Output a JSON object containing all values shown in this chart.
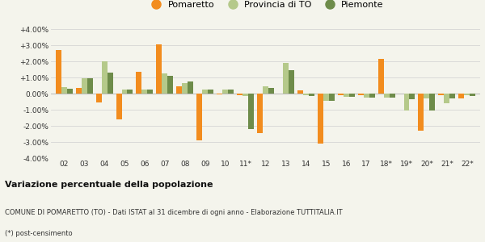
{
  "categories": [
    "02",
    "03",
    "04",
    "05",
    "06",
    "07",
    "08",
    "09",
    "10",
    "11*",
    "12",
    "13",
    "14",
    "15",
    "16",
    "17",
    "18*",
    "19*",
    "20*",
    "21*",
    "22*"
  ],
  "pomaretto": [
    2.7,
    0.35,
    -0.55,
    -1.6,
    1.35,
    3.05,
    0.45,
    -2.9,
    -0.05,
    -0.1,
    -2.45,
    0.0,
    0.2,
    -3.1,
    -0.1,
    -0.1,
    2.15,
    0.0,
    -2.3,
    -0.1,
    -0.3
  ],
  "provincia_to": [
    0.4,
    0.95,
    2.0,
    0.25,
    0.25,
    1.25,
    0.65,
    0.25,
    0.25,
    -0.15,
    0.45,
    1.9,
    -0.1,
    -0.45,
    -0.2,
    -0.25,
    -0.25,
    -1.05,
    -0.3,
    -0.6,
    -0.1
  ],
  "piemonte": [
    0.3,
    0.95,
    1.3,
    0.25,
    0.25,
    1.1,
    0.75,
    0.25,
    0.25,
    -2.2,
    0.35,
    1.45,
    -0.15,
    -0.45,
    -0.2,
    -0.25,
    -0.25,
    -0.35,
    -1.05,
    -0.3,
    -0.15
  ],
  "color_pomaretto": "#f28c1e",
  "color_provincia": "#b5c98a",
  "color_piemonte": "#6e8c4a",
  "background_color": "#f4f4ec",
  "grid_color": "#d5d5d5",
  "ylim": [
    -4.0,
    4.0
  ],
  "yticks": [
    -4.0,
    -3.0,
    -2.0,
    -1.0,
    0.0,
    1.0,
    2.0,
    3.0,
    4.0
  ],
  "title": "Variazione percentuale della popolazione",
  "subtitle": "COMUNE DI POMARETTO (TO) - Dati ISTAT al 31 dicembre di ogni anno - Elaborazione TUTTITALIA.IT",
  "footnote": "(*) post-censimento",
  "legend_labels": [
    "Pomaretto",
    "Provincia di TO",
    "Piemonte"
  ]
}
